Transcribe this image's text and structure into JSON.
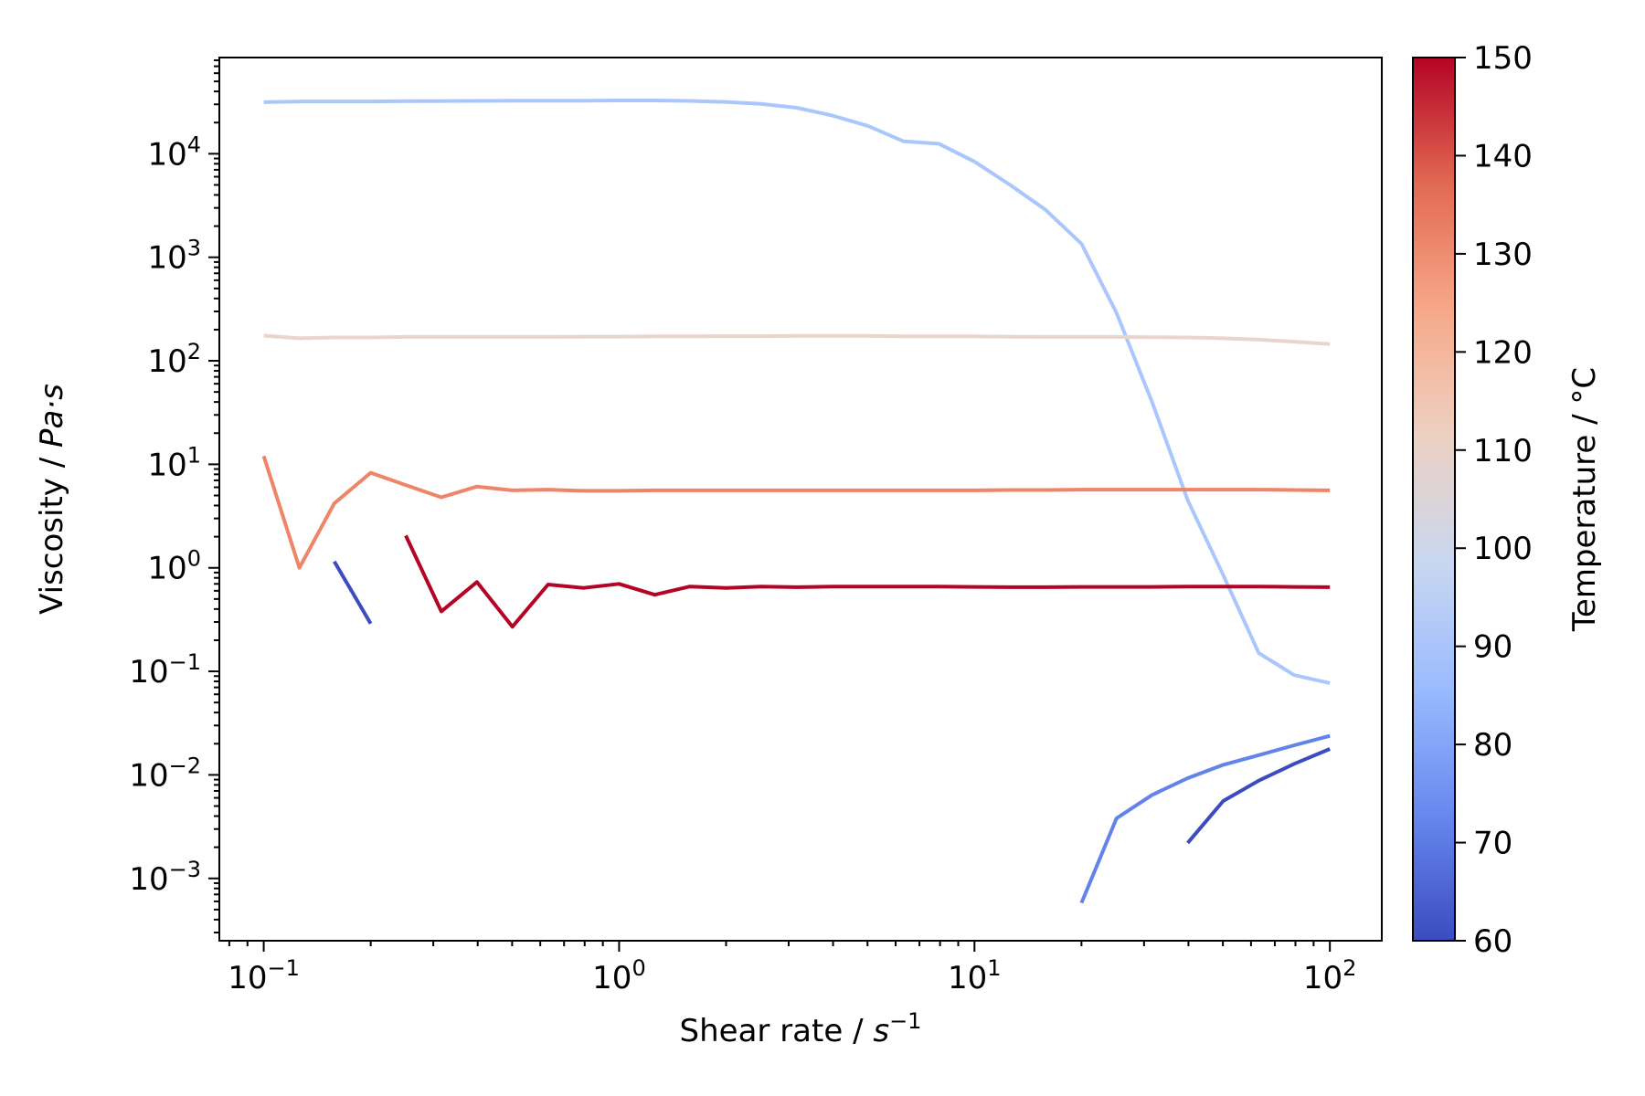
{
  "chart_data": {
    "type": "line",
    "xlabel": "Shear rate / s⁻¹",
    "xlabel_parts": {
      "text": "Shear rate / ",
      "symbol": "s",
      "exp": "−1"
    },
    "ylabel": "Viscosity / Pa·s",
    "ylabel_parts": {
      "text": "Viscosity / ",
      "symbol": "Pa·s"
    },
    "x_scale": "log",
    "y_scale": "log",
    "xlim": [
      0.075,
      140
    ],
    "ylim": [
      0.00025,
      85000
    ],
    "x_ticks": [
      {
        "value": 0.1,
        "base": "10",
        "exp": "−1"
      },
      {
        "value": 1,
        "base": "10",
        "exp": "0"
      },
      {
        "value": 10,
        "base": "10",
        "exp": "1"
      },
      {
        "value": 100,
        "base": "10",
        "exp": "2"
      }
    ],
    "y_ticks": [
      {
        "value": 0.001,
        "base": "10",
        "exp": "−3"
      },
      {
        "value": 0.01,
        "base": "10",
        "exp": "−2"
      },
      {
        "value": 0.1,
        "base": "10",
        "exp": "−1"
      },
      {
        "value": 1,
        "base": "10",
        "exp": "0"
      },
      {
        "value": 10,
        "base": "10",
        "exp": "1"
      },
      {
        "value": 100,
        "base": "10",
        "exp": "2"
      },
      {
        "value": 1000,
        "base": "10",
        "exp": "3"
      },
      {
        "value": 10000,
        "base": "10",
        "exp": "4"
      }
    ],
    "grid": false,
    "colorbar": {
      "label": "Temperature / °C",
      "min": 60,
      "max": 150,
      "ticks": [
        "60",
        "70",
        "80",
        "90",
        "100",
        "110",
        "120",
        "130",
        "140",
        "150"
      ],
      "colormap": "coolwarm",
      "stops": [
        "#3b4cc0",
        "#6788ee",
        "#9abbff",
        "#c9d7f0",
        "#edd1c2",
        "#f7a889",
        "#e26952",
        "#b40426"
      ]
    },
    "series": [
      {
        "temperature": 90,
        "color": "#aac7fd",
        "points": [
          [
            0.1,
            31500
          ],
          [
            0.126,
            32000
          ],
          [
            0.158,
            32000
          ],
          [
            0.2,
            32000
          ],
          [
            0.251,
            32200
          ],
          [
            0.316,
            32300
          ],
          [
            0.398,
            32400
          ],
          [
            0.501,
            32600
          ],
          [
            0.631,
            32600
          ],
          [
            0.794,
            32600
          ],
          [
            1.0,
            32700
          ],
          [
            1.26,
            32700
          ],
          [
            1.58,
            32400
          ],
          [
            2.0,
            31700
          ],
          [
            2.51,
            30300
          ],
          [
            3.16,
            27800
          ],
          [
            3.98,
            23400
          ],
          [
            5.01,
            18600
          ],
          [
            6.31,
            13200
          ],
          [
            7.94,
            12500
          ],
          [
            10.0,
            8400
          ],
          [
            12.6,
            5000
          ],
          [
            15.8,
            2900
          ],
          [
            20.0,
            1350
          ],
          [
            25.1,
            290
          ],
          [
            31.6,
            40
          ],
          [
            39.8,
            4.5
          ],
          [
            50.1,
            0.85
          ],
          [
            63.1,
            0.15
          ],
          [
            79.4,
            0.092
          ],
          [
            100,
            0.077
          ]
        ]
      },
      {
        "temperature": 110,
        "color": "#e8d6cc",
        "points": [
          [
            0.1,
            175
          ],
          [
            0.126,
            165
          ],
          [
            0.158,
            168
          ],
          [
            0.2,
            168
          ],
          [
            0.251,
            170
          ],
          [
            0.316,
            170
          ],
          [
            0.398,
            170
          ],
          [
            0.501,
            170
          ],
          [
            0.631,
            170
          ],
          [
            0.794,
            171
          ],
          [
            1.0,
            171
          ],
          [
            1.26,
            172
          ],
          [
            1.58,
            172
          ],
          [
            2.0,
            173
          ],
          [
            2.51,
            173
          ],
          [
            3.16,
            174
          ],
          [
            3.98,
            174
          ],
          [
            5.01,
            174
          ],
          [
            6.31,
            172
          ],
          [
            7.94,
            172
          ],
          [
            10.0,
            172
          ],
          [
            12.6,
            171
          ],
          [
            15.8,
            170
          ],
          [
            20.0,
            170
          ],
          [
            25.1,
            170
          ],
          [
            31.6,
            169
          ],
          [
            39.8,
            168
          ],
          [
            50.1,
            165
          ],
          [
            63.1,
            160
          ],
          [
            79.4,
            153
          ],
          [
            100,
            145
          ]
        ]
      },
      {
        "temperature": 127,
        "color": "#ee8468",
        "points": [
          [
            0.1,
            12
          ],
          [
            0.126,
            1.0
          ],
          [
            0.158,
            4.2
          ],
          [
            0.2,
            8.3
          ],
          [
            0.251,
            6.3
          ],
          [
            0.316,
            4.8
          ],
          [
            0.398,
            6.1
          ],
          [
            0.501,
            5.6
          ],
          [
            0.631,
            5.7
          ],
          [
            0.794,
            5.55
          ],
          [
            1.0,
            5.55
          ],
          [
            1.26,
            5.6
          ],
          [
            1.58,
            5.6
          ],
          [
            2.0,
            5.6
          ],
          [
            2.51,
            5.6
          ],
          [
            3.16,
            5.6
          ],
          [
            3.98,
            5.6
          ],
          [
            5.01,
            5.6
          ],
          [
            6.31,
            5.6
          ],
          [
            7.94,
            5.6
          ],
          [
            10.0,
            5.6
          ],
          [
            12.6,
            5.65
          ],
          [
            15.8,
            5.65
          ],
          [
            20.0,
            5.7
          ],
          [
            25.1,
            5.7
          ],
          [
            31.6,
            5.7
          ],
          [
            39.8,
            5.7
          ],
          [
            50.1,
            5.7
          ],
          [
            63.1,
            5.7
          ],
          [
            79.4,
            5.65
          ],
          [
            100,
            5.6
          ]
        ]
      },
      {
        "temperature": 150,
        "color": "#b40426",
        "points": [
          [
            0.251,
            2.05
          ],
          [
            0.316,
            0.38
          ],
          [
            0.398,
            0.73
          ],
          [
            0.501,
            0.27
          ],
          [
            0.631,
            0.69
          ],
          [
            0.794,
            0.64
          ],
          [
            1.0,
            0.7
          ],
          [
            1.26,
            0.55
          ],
          [
            1.58,
            0.66
          ],
          [
            2.0,
            0.64
          ],
          [
            2.51,
            0.66
          ],
          [
            3.16,
            0.65
          ],
          [
            3.98,
            0.66
          ],
          [
            5.01,
            0.66
          ],
          [
            6.31,
            0.66
          ],
          [
            7.94,
            0.66
          ],
          [
            10.0,
            0.655
          ],
          [
            12.6,
            0.65
          ],
          [
            15.8,
            0.65
          ],
          [
            20.0,
            0.655
          ],
          [
            25.1,
            0.655
          ],
          [
            31.6,
            0.655
          ],
          [
            39.8,
            0.66
          ],
          [
            50.1,
            0.66
          ],
          [
            63.1,
            0.66
          ],
          [
            79.4,
            0.655
          ],
          [
            100,
            0.65
          ]
        ]
      },
      {
        "temperature": 63,
        "color": "#3b4cc0",
        "points": [
          [
            0.158,
            1.15
          ],
          [
            0.2,
            0.29
          ]
        ]
      },
      {
        "temperature": 76,
        "color": "#6283e9",
        "points": [
          [
            20.0,
            0.00058
          ],
          [
            25.1,
            0.0038
          ],
          [
            31.6,
            0.0064
          ],
          [
            39.8,
            0.0093
          ],
          [
            50.1,
            0.0125
          ],
          [
            63.1,
            0.0155
          ],
          [
            79.4,
            0.0193
          ],
          [
            100,
            0.0238
          ]
        ]
      },
      {
        "temperature": 63,
        "color": "#3b4cc0",
        "points": [
          [
            39.8,
            0.0022
          ],
          [
            50.1,
            0.0056
          ],
          [
            63.1,
            0.0088
          ],
          [
            79.4,
            0.0128
          ],
          [
            100,
            0.0178
          ]
        ]
      }
    ]
  }
}
